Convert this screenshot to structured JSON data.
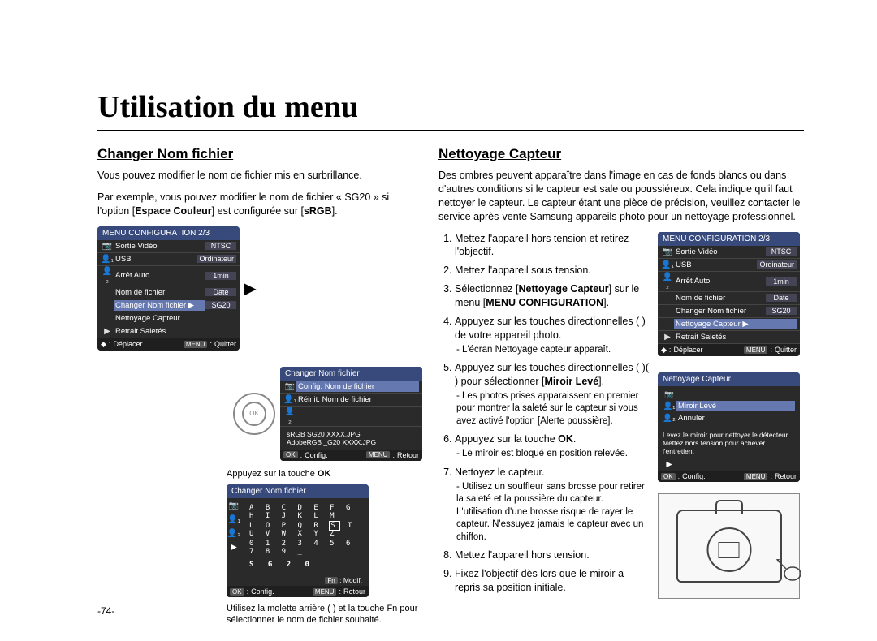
{
  "page": {
    "title": "Utilisation du menu",
    "number": "-74-"
  },
  "left": {
    "heading": "Changer Nom fichier",
    "intro": "Vous pouvez modifier le nom de fichier mis en surbrillance.",
    "example": "Par exemple, vous pouvez modifier le nom de fichier « SG20 » si l'option",
    "example_bold": "Espace Couleur",
    "example_tail": " est configurée sur ",
    "example_bold2": "sRGB",
    "example_end": ".",
    "menu1": {
      "title": "MENU CONFIGURATION 2/3",
      "rows": [
        {
          "icon": "📷",
          "label": "Sortie Vidéo",
          "value": "NTSC"
        },
        {
          "icon": "👤₁",
          "label": "USB",
          "value": "Ordinateur"
        },
        {
          "icon": "👤₂",
          "label": "Arrêt Auto",
          "value": "1min"
        },
        {
          "icon": "",
          "label": "Nom de fichier",
          "value": "Date"
        },
        {
          "icon": "",
          "label": "Changer Nom fichier ▶",
          "value": "SG20",
          "hl": true
        },
        {
          "icon": "",
          "label": "Nettoyage Capteur",
          "value": ""
        },
        {
          "icon": "▶",
          "label": "Retrait Saletés",
          "value": ""
        }
      ],
      "footer_left": "Déplacer",
      "footer_right": "Quitter",
      "footer_key": "MENU"
    },
    "menu2": {
      "title": "Changer Nom fichier",
      "rows": [
        {
          "icon": "📷",
          "label": "Config. Nom de fichier",
          "hl": true
        },
        {
          "icon": "👤₁",
          "label": "Réinit. Nom de fichier"
        },
        {
          "icon": "👤₂",
          "label": ""
        }
      ],
      "srgb_line": "sRGB       SG20 XXXX.JPG",
      "adobe_line": "AdobeRGB   _G20 XXXX.JPG",
      "footer_left": "Config.",
      "footer_right": "Retour",
      "footer_key_left": "OK",
      "footer_key_right": "MENU"
    },
    "press_ok": "Appuyez sur la touche ",
    "press_ok_bold": "OK",
    "char_screen": {
      "title": "Changer Nom fichier",
      "line1": "A B C D E F G H I J K L M",
      "line2_pre": "L O P Q R ",
      "line2_sel": "S",
      "line2_post": " T U V W X Y Z",
      "line3": "0 1 2 3 4 5 6 7 8 9 _",
      "result": "S G 2 0",
      "modif_key": "Fn",
      "modif": "Modif.",
      "footer_left": "Config.",
      "footer_right": "Retour",
      "footer_key_left": "OK",
      "footer_key_right": "MENU"
    },
    "wheel_note": "Utilisez la molette arrière (     ) et la touche Fn pour sélectionner le nom de fichier souhaité."
  },
  "right": {
    "heading": "Nettoyage Capteur",
    "intro": "Des ombres peuvent apparaître dans l'image en cas de fonds blancs ou dans d'autres conditions si le capteur est sale ou poussiéreux. Cela indique qu'il faut nettoyer le capteur. Le capteur étant une pièce de précision, veuillez contacter le service après-vente Samsung appareils photo pour un nettoyage professionnel.",
    "steps": [
      {
        "n": "1",
        "t": "Mettez l'appareil hors tension et retirez l'objectif."
      },
      {
        "n": "2",
        "t": "Mettez l'appareil sous tension."
      },
      {
        "n": "3",
        "pre": "Sélectionnez [",
        "b1": "Nettoyage Capteur",
        "mid": "] sur le menu [",
        "b2": "MENU CONFIGURATION",
        "post": "]."
      },
      {
        "n": "4",
        "t": "Appuyez sur les touches directionnelles ( ) de votre appareil photo.",
        "sub": "- L'écran Nettoyage capteur apparaît."
      },
      {
        "n": "5",
        "pre": "Appuyez sur les touches directionnelles ( )( ) pour sélectionner [",
        "b1": "Miroir Levé",
        "post": "].",
        "sub": "- Les photos prises apparaissent en premier pour montrer la saleté sur le capteur si vous avez activé l'option [Alerte poussière]."
      },
      {
        "n": "6",
        "pre": "Appuyez sur la touche ",
        "b1": "OK",
        "post": ".",
        "sub": "- Le miroir est bloqué en position relevée."
      },
      {
        "n": "7",
        "t": "Nettoyez le capteur.",
        "sub": "- Utilisez un souffleur sans brosse pour retirer la saleté et la poussière du capteur. L'utilisation d'une brosse risque de rayer le capteur. N'essuyez jamais le capteur avec un chiffon."
      },
      {
        "n": "8",
        "t": "Mettez l'appareil hors tension."
      },
      {
        "n": "9",
        "t": "Fixez l'objectif dès lors que le miroir a repris sa position initiale."
      }
    ],
    "menu": {
      "title": "MENU CONFIGURATION 2/3",
      "rows": [
        {
          "icon": "📷",
          "label": "Sortie Vidéo",
          "value": "NTSC"
        },
        {
          "icon": "👤₁",
          "label": "USB",
          "value": "Ordinateur"
        },
        {
          "icon": "👤₂",
          "label": "Arrêt Auto",
          "value": "1min"
        },
        {
          "icon": "",
          "label": "Nom de fichier",
          "value": "Date"
        },
        {
          "icon": "",
          "label": "Changer Nom fichier",
          "value": "SG20"
        },
        {
          "icon": "",
          "label": "Nettoyage Capteur ▶",
          "value": "",
          "hl": true
        },
        {
          "icon": "▶",
          "label": "Retrait Saletés",
          "value": ""
        }
      ],
      "footer_left": "Déplacer",
      "footer_right": "Quitter",
      "footer_key": "MENU"
    },
    "sensor_screen": {
      "title": "Nettoyage Capteur",
      "opt1": "Miroir Levé",
      "opt2": "Annuler",
      "msg": "Levez le miroir pour nettoyer le détecteur Mettez hors tension pour achever l'entretien.",
      "footer_left": "Config.",
      "footer_right": "Retour",
      "footer_key_left": "OK",
      "footer_key_right": "MENU"
    }
  }
}
